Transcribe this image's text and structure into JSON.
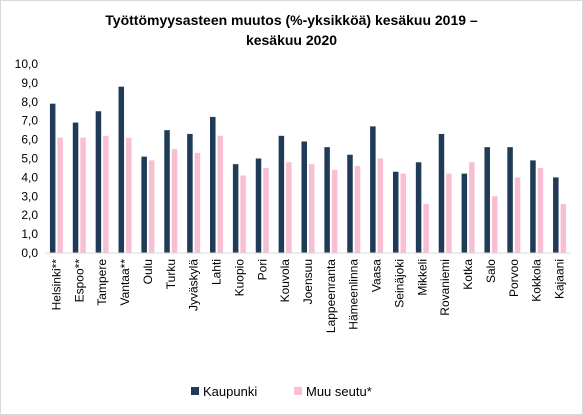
{
  "chart_data": {
    "type": "bar",
    "title_line1": "Työttömyysasteen muutos (%-yksikköä) kesäkuu 2019 –",
    "title_line2": "kesäkuu 2020",
    "xlabel": "",
    "ylabel": "",
    "ylim": [
      0,
      10
    ],
    "yticks": [
      "0,0",
      "1,0",
      "2,0",
      "3,0",
      "4,0",
      "5,0",
      "6,0",
      "7,0",
      "8,0",
      "9,0",
      "10,0"
    ],
    "grid": false,
    "legend_position": "bottom",
    "colors": {
      "Kaupunki": "#1f3b57",
      "Muu seutu*": "#f7bfd1"
    },
    "categories": [
      "Helsinki**",
      "Espoo**",
      "Tampere",
      "Vantaa**",
      "Oulu",
      "Turku",
      "Jyväskylä",
      "Lahti",
      "Kuopio",
      "Pori",
      "Kouvola",
      "Joensuu",
      "Lappeenranta",
      "Hämeenlinna",
      "Vaasa",
      "Seinäjoki",
      "Mikkeli",
      "Rovaniemi",
      "Kotka",
      "Salo",
      "Porvoo",
      "Kokkola",
      "Kajaani"
    ],
    "series": [
      {
        "name": "Kaupunki",
        "values": [
          7.9,
          6.9,
          7.5,
          8.8,
          5.1,
          6.5,
          6.3,
          7.2,
          4.7,
          5.0,
          6.2,
          5.9,
          5.6,
          5.2,
          6.7,
          4.3,
          4.8,
          6.3,
          4.2,
          5.6,
          5.6,
          4.9,
          4.0
        ]
      },
      {
        "name": "Muu seutu*",
        "values": [
          6.1,
          6.1,
          6.2,
          6.1,
          4.9,
          5.5,
          5.3,
          6.2,
          4.1,
          4.5,
          4.8,
          4.7,
          4.4,
          4.6,
          5.0,
          4.2,
          2.6,
          4.2,
          4.8,
          3.0,
          4.0,
          4.5,
          2.6
        ]
      }
    ]
  }
}
